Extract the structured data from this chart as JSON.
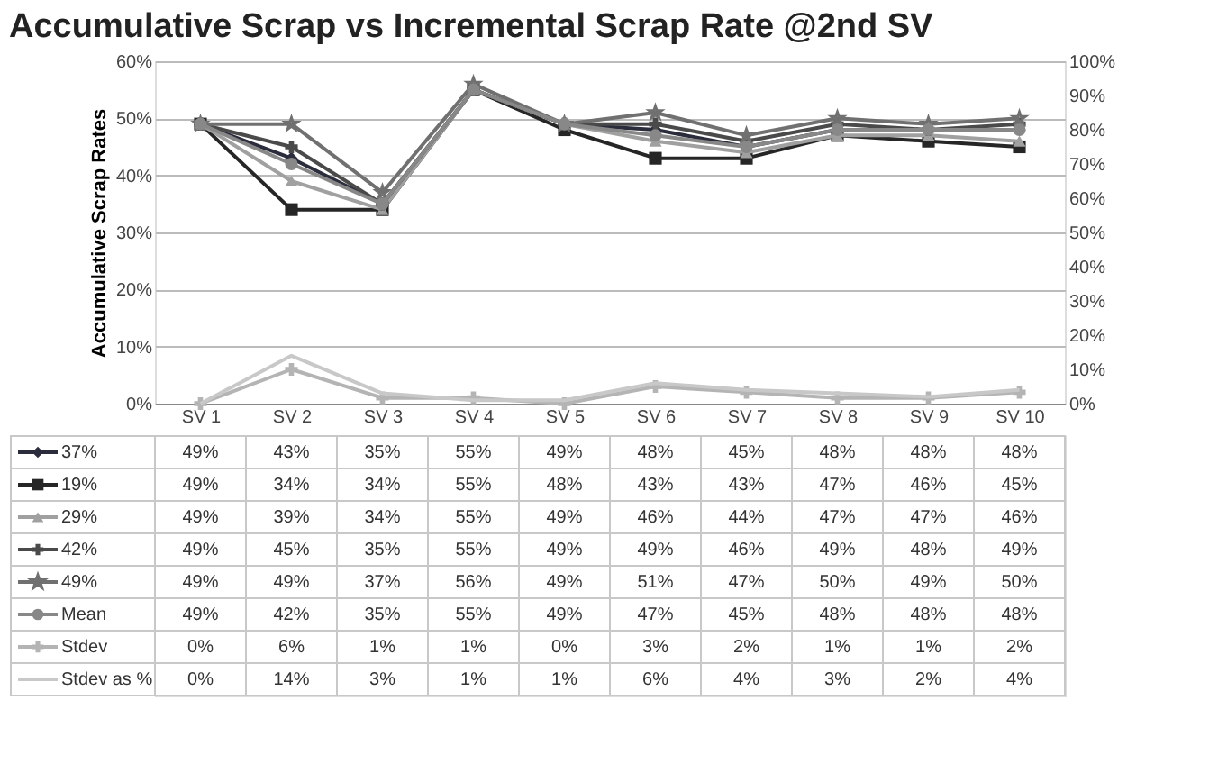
{
  "chart_data": {
    "type": "line",
    "title": "Accumulative Scrap vs Incremental Scrap Rate @2nd SV",
    "ylabel": "Accumulative Scrap Rates",
    "categories": [
      "SV 1",
      "SV 2",
      "SV 3",
      "SV 4",
      "SV 5",
      "SV 6",
      "SV 7",
      "SV 8",
      "SV 9",
      "SV 10"
    ],
    "ylim": [
      0,
      60
    ],
    "yticks": [
      {
        "value": 0,
        "label": "0%"
      },
      {
        "value": 10,
        "label": "10%"
      },
      {
        "value": 20,
        "label": "20%"
      },
      {
        "value": 30,
        "label": "30%"
      },
      {
        "value": 40,
        "label": "40%"
      },
      {
        "value": 50,
        "label": "50%"
      },
      {
        "value": 60,
        "label": "60%"
      }
    ],
    "y2lim": [
      0,
      100
    ],
    "y2ticks": [
      {
        "value": 0,
        "label": "0%"
      },
      {
        "value": 10,
        "label": "10%"
      },
      {
        "value": 20,
        "label": "20%"
      },
      {
        "value": 30,
        "label": "30%"
      },
      {
        "value": 40,
        "label": "40%"
      },
      {
        "value": 50,
        "label": "50%"
      },
      {
        "value": 60,
        "label": "60%"
      },
      {
        "value": 70,
        "label": "70%"
      },
      {
        "value": 80,
        "label": "80%"
      },
      {
        "value": 90,
        "label": "90%"
      },
      {
        "value": 100,
        "label": "100%"
      }
    ],
    "grid": "y",
    "legend": "bottom",
    "line_style": "solid",
    "series": [
      {
        "name": "37%",
        "color": "#2b2d3c",
        "marker": "diamond",
        "values": [
          49,
          43,
          35,
          55,
          49,
          48,
          45,
          48,
          48,
          48
        ],
        "value_labels": [
          "49%",
          "43%",
          "35%",
          "55%",
          "49%",
          "48%",
          "45%",
          "48%",
          "48%",
          "48%"
        ]
      },
      {
        "name": "19%",
        "color": "#262626",
        "marker": "square",
        "values": [
          49,
          34,
          34,
          55,
          48,
          43,
          43,
          47,
          46,
          45
        ],
        "value_labels": [
          "49%",
          "34%",
          "34%",
          "55%",
          "48%",
          "43%",
          "43%",
          "47%",
          "46%",
          "45%"
        ]
      },
      {
        "name": "29%",
        "color": "#a0a0a0",
        "marker": "triangle",
        "values": [
          49,
          39,
          34,
          55,
          49,
          46,
          44,
          47,
          47,
          46
        ],
        "value_labels": [
          "49%",
          "39%",
          "34%",
          "55%",
          "49%",
          "46%",
          "44%",
          "47%",
          "47%",
          "46%"
        ]
      },
      {
        "name": "42%",
        "color": "#4a4a4a",
        "marker": "cross",
        "values": [
          49,
          45,
          35,
          55,
          49,
          49,
          46,
          49,
          48,
          49
        ],
        "value_labels": [
          "49%",
          "45%",
          "35%",
          "55%",
          "49%",
          "49%",
          "46%",
          "49%",
          "48%",
          "49%"
        ]
      },
      {
        "name": "49%",
        "color": "#707070",
        "marker": "star",
        "values": [
          49,
          49,
          37,
          56,
          49,
          51,
          47,
          50,
          49,
          50
        ],
        "value_labels": [
          "49%",
          "49%",
          "37%",
          "56%",
          "49%",
          "51%",
          "47%",
          "50%",
          "49%",
          "50%"
        ]
      },
      {
        "name": "Mean",
        "color": "#888888",
        "marker": "circle",
        "values": [
          49,
          42,
          35,
          55,
          49,
          47,
          45,
          48,
          48,
          48
        ],
        "value_labels": [
          "49%",
          "42%",
          "35%",
          "55%",
          "49%",
          "47%",
          "45%",
          "48%",
          "48%",
          "48%"
        ]
      },
      {
        "name": "Stdev",
        "color": "#b4b4b4",
        "marker": "cross",
        "values": [
          0,
          6,
          1,
          1,
          0,
          3,
          2,
          1,
          1,
          2
        ],
        "value_labels": [
          "0%",
          "6%",
          "1%",
          "1%",
          "0%",
          "3%",
          "2%",
          "1%",
          "1%",
          "2%"
        ]
      },
      {
        "name": "Stdev as %",
        "color": "#c8c8c8",
        "marker": "none",
        "axis": "y2",
        "values": [
          0,
          14,
          3,
          1,
          1,
          6,
          4,
          3,
          2,
          4
        ],
        "value_labels": [
          "0%",
          "14%",
          "3%",
          "1%",
          "1%",
          "6%",
          "4%",
          "3%",
          "2%",
          "4%"
        ]
      }
    ]
  }
}
